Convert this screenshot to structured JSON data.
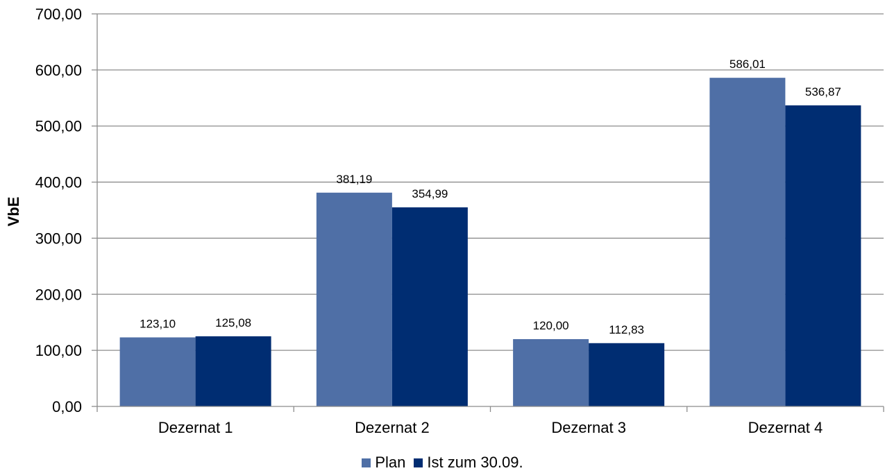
{
  "chart_data": {
    "type": "bar",
    "title": "",
    "xlabel": "",
    "ylabel": "VbE",
    "categories": [
      "Dezernat 1",
      "Dezernat 2",
      "Dezernat 3",
      "Dezernat 4"
    ],
    "ylim": [
      0,
      700
    ],
    "yticks": [
      0,
      100,
      200,
      300,
      400,
      500,
      600,
      700
    ],
    "ytick_labels": [
      "0,00",
      "100,00",
      "200,00",
      "300,00",
      "400,00",
      "500,00",
      "600,00",
      "700,00"
    ],
    "grid": true,
    "legend_position": "bottom",
    "series": [
      {
        "name": "Plan",
        "color": "#4F6FA6",
        "values": [
          123.1,
          381.19,
          120.0,
          586.01
        ],
        "labels": [
          "123,10",
          "381,19",
          "120,00",
          "586,01"
        ]
      },
      {
        "name": "Ist zum 30.09.",
        "color": "#002D72",
        "values": [
          125.08,
          354.99,
          112.83,
          536.87
        ],
        "labels": [
          "125,08",
          "354,99",
          "112,83",
          "536,87"
        ]
      }
    ]
  }
}
